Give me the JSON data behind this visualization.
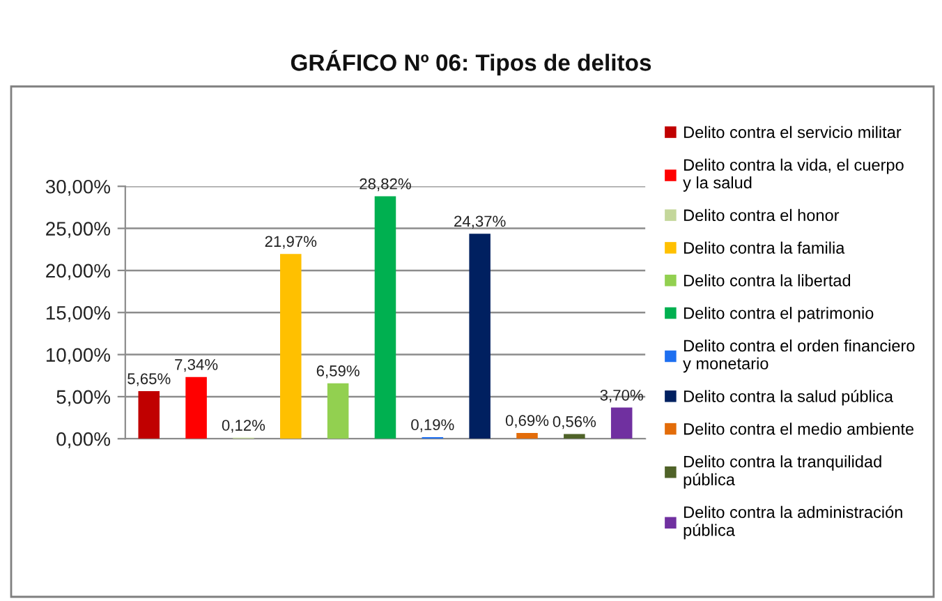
{
  "chart_data": {
    "type": "bar",
    "title": "GRÁFICO Nº 06: Tipos de delitos",
    "categories": [
      null
    ],
    "series": [
      {
        "name": "Delito contra el servicio militar",
        "color": "#c00000",
        "values": [
          5.65
        ],
        "value_labels": [
          "5,65%"
        ]
      },
      {
        "name": "Delito contra la vida, el cuerpo y la salud",
        "color": "#ff0000",
        "values": [
          7.34
        ],
        "value_labels": [
          "7,34%"
        ]
      },
      {
        "name": "Delito contra el honor",
        "color": "#c4d79b",
        "values": [
          0.12
        ],
        "value_labels": [
          "0,12%"
        ]
      },
      {
        "name": "Delito contra la familia",
        "color": "#ffc000",
        "values": [
          21.97
        ],
        "value_labels": [
          "21,97%"
        ]
      },
      {
        "name": "Delito contra la libertad",
        "color": "#92d050",
        "values": [
          6.59
        ],
        "value_labels": [
          "6,59%"
        ]
      },
      {
        "name": "Delito contra el patrimonio",
        "color": "#00b050",
        "values": [
          28.82
        ],
        "value_labels": [
          "28,82%"
        ]
      },
      {
        "name": "Delito contra el orden financiero y monetario",
        "color": "#1e6ff0",
        "values": [
          0.19
        ],
        "value_labels": [
          "0,19%"
        ]
      },
      {
        "name": "Delito contra la salud pública",
        "color": "#002060",
        "values": [
          24.37
        ],
        "value_labels": [
          "24,37%"
        ]
      },
      {
        "name": "Delito contra el medio ambiente",
        "color": "#e36c09",
        "values": [
          0.69
        ],
        "value_labels": [
          "0,69%"
        ]
      },
      {
        "name": "Delito contra la tranquilidad pública",
        "color": "#4f6228",
        "values": [
          0.56
        ],
        "value_labels": [
          "0,56%"
        ]
      },
      {
        "name": "Delito contra la administración pública",
        "color": "#7030a0",
        "values": [
          3.7
        ],
        "value_labels": [
          "3,70%"
        ]
      }
    ],
    "ylim": [
      0,
      30
    ],
    "yticks": [
      {
        "value": 0,
        "label": "0,00%"
      },
      {
        "value": 5,
        "label": "5,00%"
      },
      {
        "value": 10,
        "label": "10,00%"
      },
      {
        "value": 15,
        "label": "15,00%"
      },
      {
        "value": 20,
        "label": "20,00%"
      },
      {
        "value": 25,
        "label": "25,00%"
      },
      {
        "value": 30,
        "label": "30,00%"
      }
    ],
    "grid": "y",
    "legend": "right",
    "tick_labels": "y"
  }
}
